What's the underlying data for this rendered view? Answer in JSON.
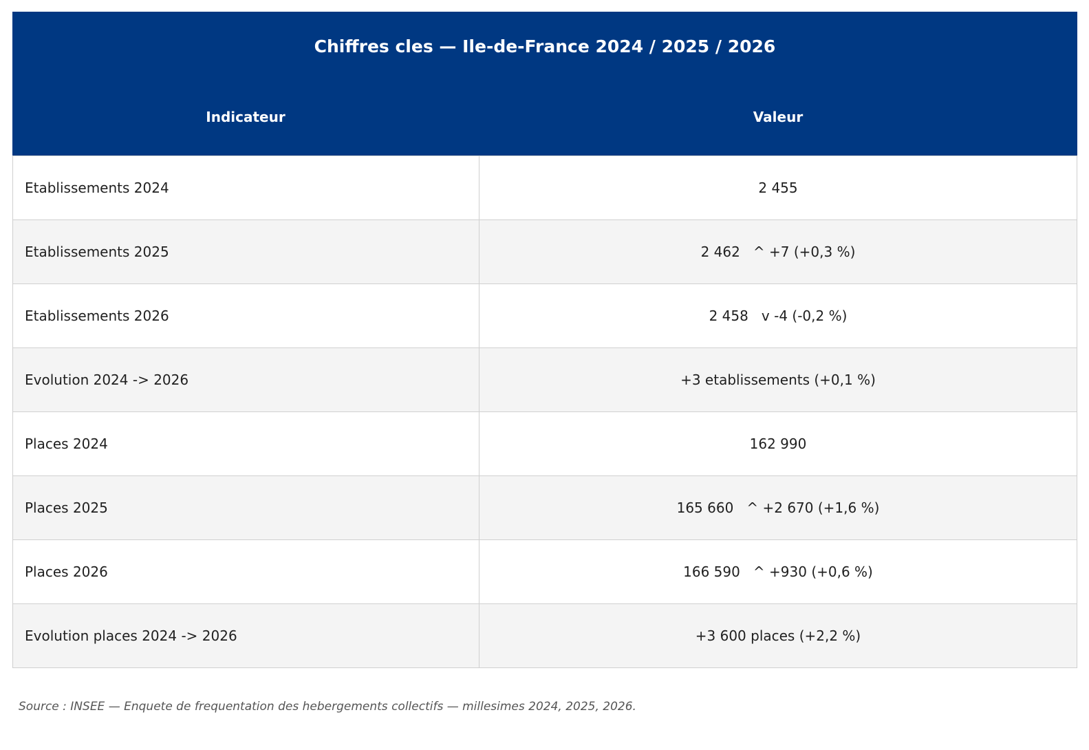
{
  "title": "Chiffres cles — Ile-de-France 2024 / 2025 / 2026",
  "columns": {
    "indicator": "Indicateur",
    "value": "Valeur"
  },
  "rows": [
    {
      "indicator": "Etablissements 2024",
      "value": "2 455"
    },
    {
      "indicator": "Etablissements 2025",
      "value": "2 462   ^ +7 (+0,3 %)"
    },
    {
      "indicator": "Etablissements 2026",
      "value": "2 458   v -4 (-0,2 %)"
    },
    {
      "indicator": "Evolution 2024 -> 2026",
      "value": "+3 etablissements (+0,1 %)"
    },
    {
      "indicator": "Places 2024",
      "value": "162 990"
    },
    {
      "indicator": "Places 2025",
      "value": "165 660   ^ +2 670 (+1,6 %)"
    },
    {
      "indicator": "Places 2026",
      "value": "166 590   ^ +930 (+0,6 %)"
    },
    {
      "indicator": "Evolution places 2024 -> 2026",
      "value": "+3 600 places (+2,2 %)"
    }
  ],
  "source": "Source : INSEE — Enquete de frequentation des hebergements collectifs — millesimes 2024, 2025, 2026.",
  "colors": {
    "header_bg": "#003882",
    "header_text": "#ffffff",
    "row_alt_bg": "#f4f4f4",
    "grid": "#d0d0d0"
  }
}
